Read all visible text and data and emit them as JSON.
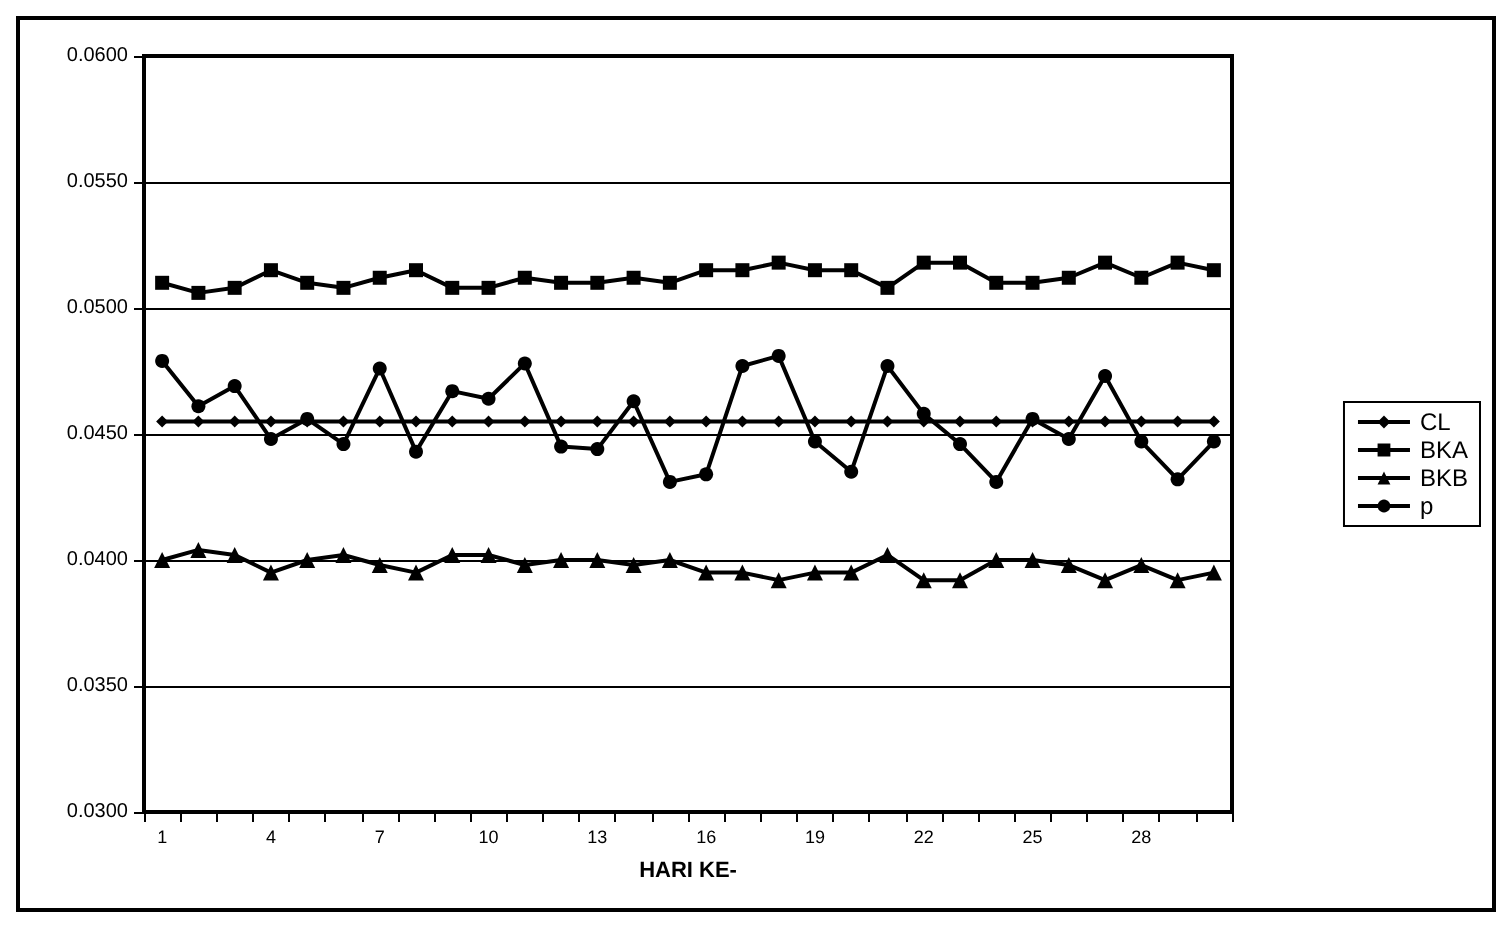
{
  "chart_data": {
    "type": "line",
    "xlabel": "HARI KE-",
    "categories": [
      "1",
      null,
      null,
      "4",
      null,
      null,
      "7",
      null,
      null,
      "10",
      null,
      null,
      "13",
      null,
      null,
      "16",
      null,
      null,
      "19",
      null,
      null,
      "22",
      null,
      null,
      "25",
      null,
      null,
      "28",
      null,
      null
    ],
    "series": [
      {
        "name": "CL",
        "color": "#000000",
        "marker": "diamond",
        "values": [
          0.0455,
          0.0455,
          0.0455,
          0.0455,
          0.0455,
          0.0455,
          0.0455,
          0.0455,
          0.0455,
          0.0455,
          0.0455,
          0.0455,
          0.0455,
          0.0455,
          0.0455,
          0.0455,
          0.0455,
          0.0455,
          0.0455,
          0.0455,
          0.0455,
          0.0455,
          0.0455,
          0.0455,
          0.0455,
          0.0455,
          0.0455,
          0.0455,
          0.0455,
          0.0455
        ]
      },
      {
        "name": "BKA",
        "color": "#000000",
        "marker": "square",
        "values": [
          0.051,
          0.0506,
          0.0508,
          0.0515,
          0.051,
          0.0508,
          0.0512,
          0.0515,
          0.0508,
          0.0508,
          0.0512,
          0.051,
          0.051,
          0.0512,
          0.051,
          0.0515,
          0.0515,
          0.0518,
          0.0515,
          0.0515,
          0.0508,
          0.0518,
          0.0518,
          0.051,
          0.051,
          0.0512,
          0.0518,
          0.0512,
          0.0518,
          0.0515
        ]
      },
      {
        "name": "BKB",
        "color": "#000000",
        "marker": "triangle",
        "values": [
          0.04,
          0.0404,
          0.0402,
          0.0395,
          0.04,
          0.0402,
          0.0398,
          0.0395,
          0.0402,
          0.0402,
          0.0398,
          0.04,
          0.04,
          0.0398,
          0.04,
          0.0395,
          0.0395,
          0.0392,
          0.0395,
          0.0395,
          0.0402,
          0.0392,
          0.0392,
          0.04,
          0.04,
          0.0398,
          0.0392,
          0.0398,
          0.0392,
          0.0395
        ]
      },
      {
        "name": "p",
        "color": "#000000",
        "marker": "circle",
        "values": [
          0.0479,
          0.0461,
          0.0469,
          0.0448,
          0.0456,
          0.0446,
          0.0476,
          0.0443,
          0.0467,
          0.0464,
          0.0478,
          0.0445,
          0.0444,
          0.0463,
          0.0431,
          0.0434,
          0.0477,
          0.0481,
          0.0447,
          0.0435,
          0.0477,
          0.0458,
          0.0446,
          0.0431,
          0.0456,
          0.0448,
          0.0473,
          0.0447,
          0.0432,
          0.0447
        ]
      }
    ],
    "ylim": [
      0.03,
      0.06
    ],
    "yticks": [
      {
        "value": 0.03,
        "label": "0.0300"
      },
      {
        "value": 0.035,
        "label": "0.0350"
      },
      {
        "value": 0.04,
        "label": "0.0400"
      },
      {
        "value": 0.045,
        "label": "0.0450"
      },
      {
        "value": 0.05,
        "label": "0.0500"
      },
      {
        "value": 0.055,
        "label": "0.0550"
      },
      {
        "value": 0.06,
        "label": "0.0600"
      }
    ],
    "grid": "y",
    "legend": "right",
    "line_style": "solid"
  }
}
